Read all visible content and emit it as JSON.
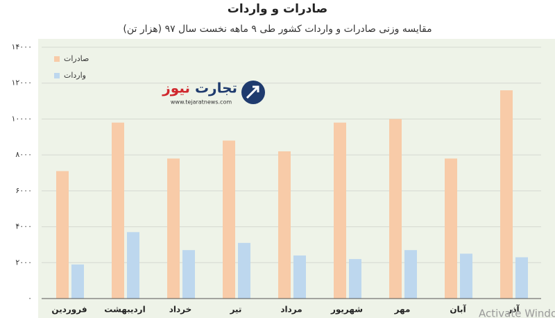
{
  "chart_data": {
    "type": "bar",
    "title": "صادرات و واردات",
    "subtitle": "مقایسه وزنی صادرات و واردات کشور طی ۹ ماهه نخست سال ۹۷ (هزار تن)",
    "categories": [
      "فروردین",
      "اردیبهشت",
      "خرداد",
      "تیر",
      "مرداد",
      "شهریور",
      "مهر",
      "آبان",
      "آذر"
    ],
    "series": [
      {
        "name": "صادرات",
        "color": "#f8cba8",
        "values": [
          7100,
          9800,
          7800,
          8800,
          8200,
          9800,
          10000,
          7800,
          11600
        ]
      },
      {
        "name": "واردات",
        "color": "#bdd7ee",
        "values": [
          1900,
          3700,
          2700,
          3100,
          2400,
          2200,
          2700,
          2500,
          2300
        ]
      }
    ],
    "ylim": [
      0,
      14000
    ],
    "yticks": [
      {
        "value": 0,
        "label": "۰"
      },
      {
        "value": 2000,
        "label": "۲۰۰۰"
      },
      {
        "value": 4000,
        "label": "۴۰۰۰"
      },
      {
        "value": 6000,
        "label": "۶۰۰۰"
      },
      {
        "value": 8000,
        "label": "۸۰۰۰"
      },
      {
        "value": 10000,
        "label": "۱۰۰۰۰"
      },
      {
        "value": 12000,
        "label": "۱۲۰۰۰"
      },
      {
        "value": 14000,
        "label": "۱۴۰۰۰"
      }
    ],
    "grid": true,
    "legend": "top-left",
    "watermark": {
      "brand_1": "تجارت",
      "brand_2": "نیوز",
      "url": "www.tejaratnews.com"
    },
    "overlay": "Activate Windows"
  }
}
